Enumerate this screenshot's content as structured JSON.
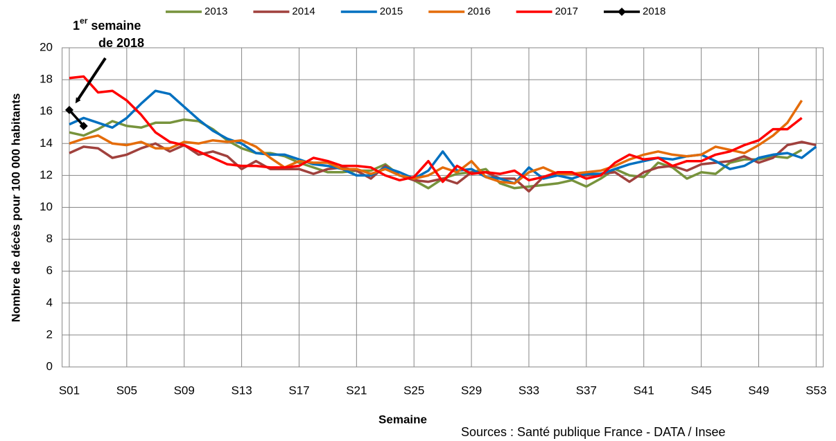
{
  "chart_data": {
    "type": "line",
    "y_label": "Nombre de décès pour 100 000 habitants",
    "x_label": "Semaine",
    "source": "Sources : Santé publique France - DATA / Insee",
    "annotation": {
      "number": "1",
      "superscript": "er",
      "line1": "semaine",
      "line2": "de 2018"
    },
    "categories": [
      "S01",
      null,
      null,
      null,
      "S05",
      null,
      null,
      null,
      "S09",
      null,
      null,
      null,
      "S13",
      null,
      null,
      null,
      "S17",
      null,
      null,
      null,
      "S21",
      null,
      null,
      null,
      "S25",
      null,
      null,
      null,
      "S29",
      null,
      null,
      null,
      "S33",
      null,
      null,
      null,
      "S37",
      null,
      null,
      null,
      "S41",
      null,
      null,
      null,
      "S45",
      null,
      null,
      null,
      "S49",
      null,
      null,
      null,
      "S53"
    ],
    "ylim": [
      0,
      20
    ],
    "yticks": [
      0,
      2,
      4,
      6,
      8,
      10,
      12,
      14,
      16,
      18,
      20
    ],
    "grid": true,
    "legend": "top",
    "series": [
      {
        "name": "2013",
        "color": "#77933c",
        "values": [
          14.7,
          14.5,
          14.9,
          15.4,
          15.1,
          15.0,
          15.3,
          15.3,
          15.5,
          15.4,
          14.9,
          14.2,
          13.7,
          13.4,
          13.4,
          13.2,
          12.8,
          12.5,
          12.2,
          12.2,
          12.3,
          12.3,
          12.7,
          12.0,
          11.7,
          11.2,
          11.8,
          12.1,
          12.2,
          12.4,
          11.5,
          11.2,
          11.3,
          11.4,
          11.5,
          11.7,
          11.3,
          11.8,
          12.4,
          12.0,
          11.9,
          12.8,
          12.5,
          11.8,
          12.2,
          12.1,
          12.8,
          13.0,
          13.0,
          13.2,
          13.1,
          13.6,
          null
        ]
      },
      {
        "name": "2014",
        "color": "#a0413d",
        "values": [
          13.4,
          13.8,
          13.7,
          13.1,
          13.3,
          13.7,
          14.0,
          13.5,
          13.9,
          13.3,
          13.5,
          13.2,
          12.4,
          12.9,
          12.4,
          12.4,
          12.4,
          12.1,
          12.4,
          12.5,
          12.3,
          11.8,
          12.6,
          12.0,
          11.7,
          11.6,
          11.8,
          11.5,
          12.2,
          12.2,
          11.8,
          11.8,
          11.0,
          11.9,
          12.1,
          12.1,
          12.0,
          12.1,
          12.2,
          11.6,
          12.2,
          12.5,
          12.6,
          12.3,
          12.7,
          12.8,
          12.9,
          13.2,
          12.8,
          13.1,
          13.9,
          14.1,
          13.9
        ]
      },
      {
        "name": "2015",
        "color": "#0070c0",
        "values": [
          15.2,
          15.6,
          15.3,
          15.0,
          15.6,
          16.5,
          17.3,
          17.1,
          16.3,
          15.5,
          14.8,
          14.3,
          14.0,
          13.4,
          13.3,
          13.3,
          13.0,
          12.7,
          12.6,
          12.4,
          12.0,
          12.0,
          12.5,
          12.2,
          11.8,
          12.3,
          13.5,
          12.3,
          12.4,
          11.9,
          11.8,
          11.5,
          12.5,
          11.8,
          12.0,
          11.8,
          12.1,
          12.1,
          12.4,
          12.7,
          12.9,
          13.1,
          13.0,
          13.2,
          13.3,
          12.9,
          12.4,
          12.6,
          13.1,
          13.3,
          13.4,
          13.1,
          13.8
        ]
      },
      {
        "name": "2016",
        "color": "#e46c0a",
        "values": [
          14.0,
          14.3,
          14.5,
          14.0,
          13.9,
          14.1,
          13.7,
          13.7,
          14.1,
          14.0,
          14.2,
          14.1,
          14.2,
          13.8,
          13.1,
          12.5,
          12.9,
          12.8,
          12.8,
          12.4,
          12.4,
          12.1,
          12.4,
          12.0,
          11.8,
          12.0,
          12.5,
          12.2,
          12.9,
          11.9,
          11.6,
          11.5,
          12.2,
          12.5,
          12.1,
          12.1,
          12.2,
          12.3,
          12.6,
          13.0,
          13.3,
          13.5,
          13.3,
          13.2,
          13.3,
          13.8,
          13.6,
          13.4,
          13.9,
          14.5,
          15.3,
          16.7,
          null
        ]
      },
      {
        "name": "2017",
        "color": "#ff0000",
        "values": [
          18.1,
          18.2,
          17.2,
          17.3,
          16.7,
          15.8,
          14.7,
          14.1,
          13.9,
          13.5,
          13.1,
          12.7,
          12.6,
          12.6,
          12.5,
          12.5,
          12.6,
          13.1,
          12.9,
          12.6,
          12.6,
          12.5,
          12.0,
          11.7,
          11.9,
          12.9,
          11.6,
          12.6,
          12.1,
          12.2,
          12.1,
          12.3,
          11.7,
          11.9,
          12.2,
          12.2,
          11.8,
          12.0,
          12.8,
          13.3,
          13.0,
          13.1,
          12.6,
          12.9,
          12.9,
          13.3,
          13.5,
          13.9,
          14.2,
          14.9,
          14.9,
          15.6,
          null
        ]
      },
      {
        "name": "2018",
        "color": "#000000",
        "marker": "diamond",
        "values": [
          16.1,
          15.1,
          null,
          null,
          null,
          null,
          null,
          null,
          null,
          null,
          null,
          null,
          null,
          null,
          null,
          null,
          null,
          null,
          null,
          null,
          null,
          null,
          null,
          null,
          null,
          null,
          null,
          null,
          null,
          null,
          null,
          null,
          null,
          null,
          null,
          null,
          null,
          null,
          null,
          null,
          null,
          null,
          null,
          null,
          null,
          null,
          null,
          null,
          null,
          null,
          null,
          null,
          null
        ]
      }
    ]
  }
}
